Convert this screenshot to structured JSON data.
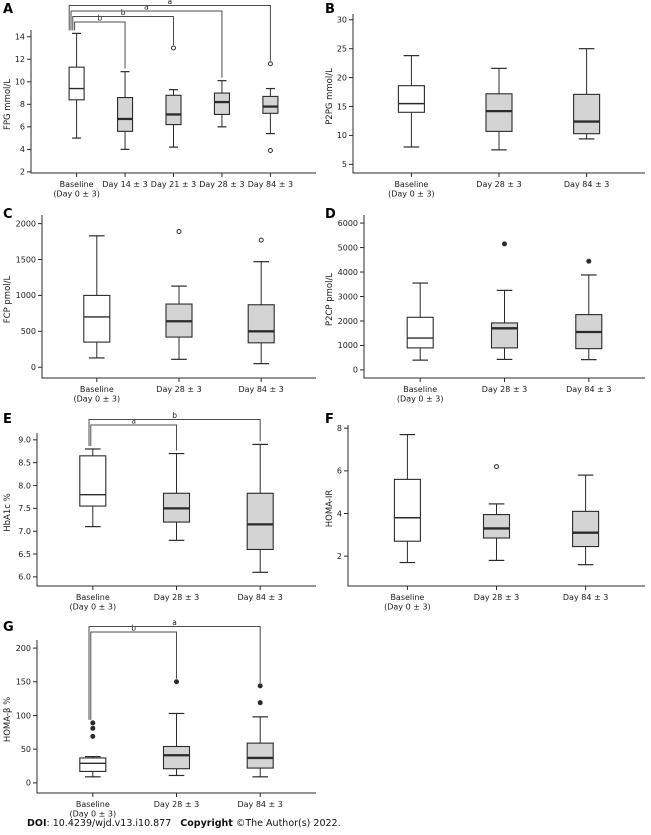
{
  "caption": {
    "doi_label": "DOI",
    "doi_text": ": 10.4239/wjd.v13.i10.877",
    "copyright_label": "Copyright",
    "copyright_text": "©The Author(s) 2022."
  },
  "colors": {
    "baseline_box_fill": "#ffffff",
    "treatment_box_fill": "#d4d4d4",
    "line": "#2b2b2b",
    "bracket": "#4d4d4d",
    "background": "#ffffff"
  },
  "chart_data": [
    {
      "panel": "A",
      "type": "boxplot",
      "ylabel": "FPG mmol/L",
      "ylim": [
        1.9,
        14.6
      ],
      "yticks": [
        2,
        4,
        6,
        8,
        10,
        12,
        14
      ],
      "tick_decimals": 0,
      "grid": false,
      "categories": [
        {
          "lines": [
            "Baseline",
            "(Day 0 ± 3)"
          ]
        },
        {
          "lines": [
            "Day 14 ± 3"
          ]
        },
        {
          "lines": [
            "Day 21 ± 3"
          ]
        },
        {
          "lines": [
            "Day 28 ± 3"
          ]
        },
        {
          "lines": [
            "Day 84 ± 3"
          ]
        }
      ],
      "boxes": [
        {
          "group": "Baseline (Day 0 ± 3)",
          "low": 5.0,
          "q1": 8.4,
          "median": 9.4,
          "q3": 11.3,
          "high": 14.3,
          "outliers": [],
          "fill": "baseline"
        },
        {
          "group": "Day 14 ± 3",
          "low": 4.0,
          "q1": 5.6,
          "median": 6.7,
          "q3": 8.6,
          "high": 10.9,
          "outliers": [],
          "fill": "treatment"
        },
        {
          "group": "Day 21 ± 3",
          "low": 4.2,
          "q1": 6.2,
          "median": 7.1,
          "q3": 8.8,
          "high": 9.3,
          "outliers": [
            13.0
          ],
          "fill": "treatment"
        },
        {
          "group": "Day 28 ± 3",
          "low": 6.0,
          "q1": 7.1,
          "median": 8.2,
          "q3": 9.0,
          "high": 10.1,
          "outliers": [],
          "fill": "treatment"
        },
        {
          "group": "Day 84 ± 3",
          "low": 5.4,
          "q1": 7.2,
          "median": 7.8,
          "q3": 8.7,
          "high": 9.4,
          "outliers": [
            3.9,
            11.6
          ],
          "fill": "treatment"
        }
      ],
      "brackets": [
        {
          "from": 0,
          "to": 1,
          "label": "b"
        },
        {
          "from": 0,
          "to": 2,
          "label": "b"
        },
        {
          "from": 0,
          "to": 3,
          "label": "a"
        },
        {
          "from": 0,
          "to": 4,
          "label": "a"
        }
      ],
      "outliers_filled": false
    },
    {
      "panel": "B",
      "type": "boxplot",
      "ylabel": "P2PG mmol/L",
      "ylim": [
        3.5,
        31
      ],
      "yticks": [
        5,
        10,
        15,
        20,
        25,
        30
      ],
      "tick_decimals": 0,
      "grid": false,
      "categories": [
        {
          "lines": [
            "Baseline",
            "(Day 0 ± 3)"
          ]
        },
        {
          "lines": [
            "Day 28 ± 3"
          ]
        },
        {
          "lines": [
            "Day 84 ± 3"
          ]
        }
      ],
      "boxes": [
        {
          "group": "Baseline (Day 0 ± 3)",
          "low": 8.0,
          "q1": 14.0,
          "median": 15.5,
          "q3": 18.6,
          "high": 23.8,
          "outliers": [],
          "fill": "baseline"
        },
        {
          "group": "Day 28 ± 3",
          "low": 7.5,
          "q1": 10.7,
          "median": 14.2,
          "q3": 17.2,
          "high": 21.6,
          "outliers": [],
          "fill": "treatment"
        },
        {
          "group": "Day 84 ± 3",
          "low": 9.4,
          "q1": 10.3,
          "median": 12.4,
          "q3": 17.1,
          "high": 25.0,
          "outliers": [],
          "fill": "treatment"
        }
      ],
      "brackets": [],
      "outliers_filled": false
    },
    {
      "panel": "C",
      "type": "boxplot",
      "ylabel": "FCP pmol/L",
      "ylim": [
        -150,
        2120
      ],
      "yticks": [
        0,
        500,
        1000,
        1500,
        2000
      ],
      "tick_decimals": 0,
      "grid": false,
      "categories": [
        {
          "lines": [
            "Baseline",
            "(Day 0 ± 3)"
          ]
        },
        {
          "lines": [
            "Day 28 ± 3"
          ]
        },
        {
          "lines": [
            "Day 84 ± 3"
          ]
        }
      ],
      "boxes": [
        {
          "group": "Baseline (Day 0 ± 3)",
          "low": 130,
          "q1": 350,
          "median": 700,
          "q3": 1000,
          "high": 1830,
          "outliers": [],
          "fill": "baseline"
        },
        {
          "group": "Day 28 ± 3",
          "low": 110,
          "q1": 420,
          "median": 640,
          "q3": 880,
          "high": 1130,
          "outliers": [
            1890
          ],
          "fill": "treatment"
        },
        {
          "group": "Day 84 ± 3",
          "low": 50,
          "q1": 340,
          "median": 500,
          "q3": 870,
          "high": 1470,
          "outliers": [
            1770
          ],
          "fill": "treatment"
        }
      ],
      "brackets": [],
      "outliers_filled": false
    },
    {
      "panel": "D",
      "type": "boxplot",
      "ylabel": "P2CP pmol/L",
      "ylim": [
        -330,
        6330
      ],
      "yticks": [
        0,
        1000,
        2000,
        3000,
        4000,
        5000,
        6000
      ],
      "tick_decimals": 0,
      "grid": false,
      "categories": [
        {
          "lines": [
            "Baseline",
            "(Day 0 ± 3)"
          ]
        },
        {
          "lines": [
            "Day 28 ± 3"
          ]
        },
        {
          "lines": [
            "Day 84 ± 3"
          ]
        }
      ],
      "boxes": [
        {
          "group": "Baseline (Day 0 ± 3)",
          "low": 400,
          "q1": 900,
          "median": 1300,
          "q3": 2150,
          "high": 3550,
          "outliers": [],
          "fill": "baseline"
        },
        {
          "group": "Day 28 ± 3",
          "low": 430,
          "q1": 900,
          "median": 1700,
          "q3": 1920,
          "high": 3250,
          "outliers": [
            5150
          ],
          "fill": "treatment"
        },
        {
          "group": "Day 84 ± 3",
          "low": 420,
          "q1": 870,
          "median": 1550,
          "q3": 2260,
          "high": 3880,
          "outliers": [
            4440
          ],
          "fill": "treatment"
        }
      ],
      "brackets": [],
      "outliers_filled": true
    },
    {
      "panel": "E",
      "type": "boxplot",
      "ylabel": "HbA1c %",
      "ylim": [
        5.8,
        9.15
      ],
      "yticks": [
        6.0,
        6.5,
        7.0,
        7.5,
        8.0,
        8.5,
        9.0
      ],
      "tick_decimals": 1,
      "grid": false,
      "categories": [
        {
          "lines": [
            "Baseline",
            "(Day 0 ± 3)"
          ]
        },
        {
          "lines": [
            "Day 28 ± 3"
          ]
        },
        {
          "lines": [
            "Day 84 ± 3"
          ]
        }
      ],
      "boxes": [
        {
          "group": "Baseline (Day 0 ± 3)",
          "low": 7.1,
          "q1": 7.55,
          "median": 7.8,
          "q3": 8.65,
          "high": 8.8,
          "outliers": [],
          "fill": "baseline"
        },
        {
          "group": "Day 28 ± 3",
          "low": 6.8,
          "q1": 7.2,
          "median": 7.5,
          "q3": 7.83,
          "high": 8.7,
          "outliers": [],
          "fill": "treatment"
        },
        {
          "group": "Day 84 ± 3",
          "low": 6.1,
          "q1": 6.6,
          "median": 7.15,
          "q3": 7.83,
          "high": 8.9,
          "outliers": [],
          "fill": "treatment"
        }
      ],
      "brackets": [
        {
          "from": 0,
          "to": 1,
          "label": "a"
        },
        {
          "from": 0,
          "to": 2,
          "label": "b"
        }
      ],
      "outliers_filled": false
    },
    {
      "panel": "F",
      "type": "boxplot",
      "ylabel": "HOMA-IR",
      "ylim": [
        0.6,
        8.15
      ],
      "yticks": [
        2,
        4,
        6,
        8
      ],
      "tick_decimals": 0,
      "grid": false,
      "categories": [
        {
          "lines": [
            "Baseline",
            "(Day 0 ± 3)"
          ]
        },
        {
          "lines": [
            "Day 28 ± 3"
          ]
        },
        {
          "lines": [
            "Day 84 ± 3"
          ]
        }
      ],
      "boxes": [
        {
          "group": "Baseline (Day 0 ± 3)",
          "low": 1.7,
          "q1": 2.7,
          "median": 3.8,
          "q3": 5.6,
          "high": 7.7,
          "outliers": [],
          "fill": "baseline"
        },
        {
          "group": "Day 28 ± 3",
          "low": 1.8,
          "q1": 2.85,
          "median": 3.3,
          "q3": 3.95,
          "high": 4.45,
          "outliers": [
            6.2
          ],
          "fill": "treatment"
        },
        {
          "group": "Day 84 ± 3",
          "low": 1.6,
          "q1": 2.45,
          "median": 3.1,
          "q3": 4.1,
          "high": 5.8,
          "outliers": [],
          "fill": "treatment"
        }
      ],
      "brackets": [],
      "outliers_filled": false
    },
    {
      "panel": "G",
      "type": "boxplot",
      "ylabel": "HOMA-β %",
      "ylim": [
        -15,
        212
      ],
      "yticks": [
        0,
        50,
        100,
        150,
        200
      ],
      "tick_decimals": 0,
      "grid": false,
      "categories": [
        {
          "lines": [
            "Baseline",
            "(Day 0 ± 3)"
          ]
        },
        {
          "lines": [
            "Day 28 ± 3"
          ]
        },
        {
          "lines": [
            "Day 84 ± 3"
          ]
        }
      ],
      "boxes": [
        {
          "group": "Baseline (Day 0 ± 3)",
          "low": 9,
          "q1": 17,
          "median": 29,
          "q3": 37,
          "high": 39,
          "outliers": [
            69,
            81,
            89
          ],
          "fill": "baseline"
        },
        {
          "group": "Day 28 ± 3",
          "low": 11,
          "q1": 21,
          "median": 41,
          "q3": 54,
          "high": 103,
          "outliers": [
            150
          ],
          "fill": "treatment"
        },
        {
          "group": "Day 84 ± 3",
          "low": 9,
          "q1": 22,
          "median": 37,
          "q3": 59,
          "high": 98,
          "outliers": [
            119,
            144
          ],
          "fill": "treatment"
        }
      ],
      "brackets": [
        {
          "from": 0,
          "to": 1,
          "label": "b"
        },
        {
          "from": 0,
          "to": 2,
          "label": "a"
        }
      ],
      "outliers_filled": true
    }
  ]
}
